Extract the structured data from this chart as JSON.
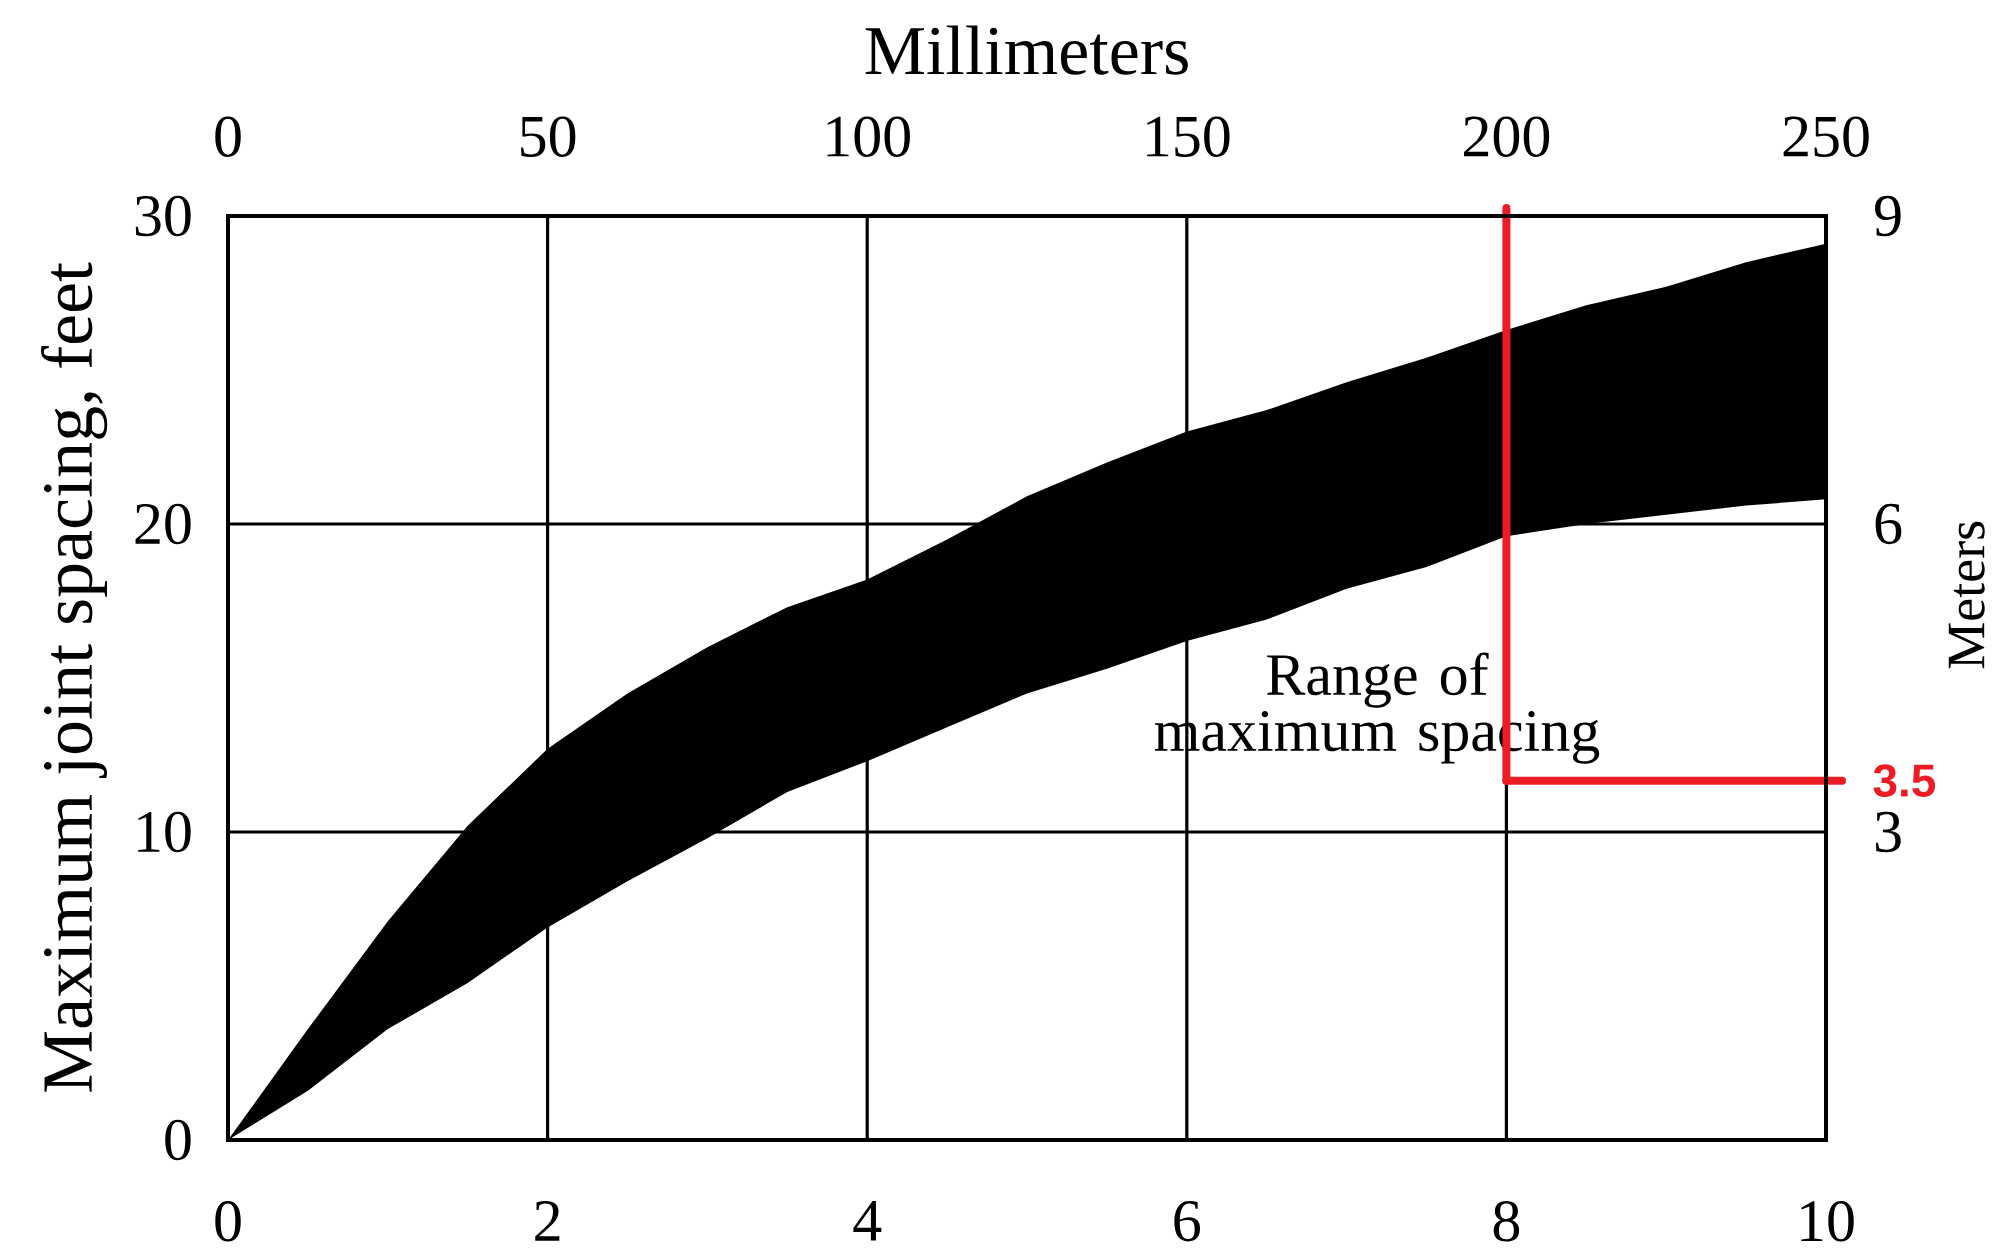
{
  "chart_data": {
    "type": "area",
    "x2label": "Millimeters",
    "ylabel": "Maximum joint spacing, feet",
    "y2label": "Meters",
    "x": [
      0,
      0.5,
      1,
      1.5,
      2,
      2.5,
      3,
      3.5,
      4,
      4.5,
      5,
      5.5,
      6,
      6.5,
      7,
      7.5,
      8,
      8.5,
      9,
      9.5,
      10
    ],
    "series": [
      {
        "name": "Range of maximum spacing",
        "color": "#000000",
        "values": [
          null,
          null,
          null,
          null,
          null,
          null,
          null,
          null,
          null,
          null,
          null,
          null,
          null,
          null,
          null,
          null,
          null,
          null,
          null,
          null,
          null
        ],
        "upper": [
          0,
          3.6,
          7.1,
          10.2,
          12.7,
          14.5,
          16.0,
          17.3,
          18.2,
          19.5,
          20.9,
          22.0,
          23.0,
          23.7,
          24.6,
          25.4,
          26.3,
          27.1,
          27.7,
          28.5,
          29.1
        ],
        "lower": [
          0,
          1.6,
          3.6,
          5.1,
          6.9,
          8.4,
          9.8,
          11.3,
          12.3,
          13.4,
          14.5,
          15.3,
          16.2,
          16.9,
          17.9,
          18.6,
          19.6,
          20.0,
          20.3,
          20.6,
          20.8
        ]
      }
    ],
    "xlim": [
      0,
      10
    ],
    "xticks": [
      0,
      2,
      4,
      6,
      8,
      10
    ],
    "x2lim": [
      0,
      250
    ],
    "x2ticks": [
      0,
      50,
      100,
      150,
      200,
      250
    ],
    "ylim": [
      0,
      30
    ],
    "yticks": [
      0,
      10,
      20,
      30
    ],
    "y2lim": [
      0,
      9
    ],
    "y2ticks": [
      3,
      6,
      9
    ],
    "grid": true,
    "ref_lines": [
      {
        "axis": "x",
        "value": 8,
        "color": "#ed1c24"
      },
      {
        "axis": "y2",
        "value": 3.5,
        "label": "3.5",
        "color": "#ed1c24"
      }
    ]
  }
}
